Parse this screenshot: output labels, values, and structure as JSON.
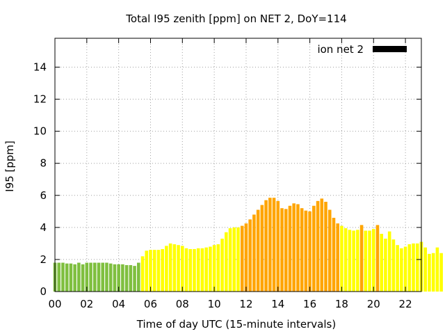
{
  "chart_data": {
    "type": "bar",
    "title": "Total I95 zenith [ppm] on NET 2, DoY=114",
    "xlabel": "Time of day UTC (15-minute intervals)",
    "ylabel": "I95 [ppm]",
    "xlim": [
      0,
      23
    ],
    "ylim": [
      0,
      15.8
    ],
    "xticks": [
      0,
      2,
      4,
      6,
      8,
      10,
      12,
      14,
      16,
      18,
      20,
      22
    ],
    "xtick_labels": [
      "00",
      "02",
      "04",
      "06",
      "08",
      "10",
      "12",
      "14",
      "16",
      "18",
      "20",
      "22"
    ],
    "yticks": [
      0,
      2,
      4,
      6,
      8,
      10,
      12,
      14
    ],
    "ytick_labels": [
      "0",
      "2",
      "4",
      "6",
      "8",
      "10",
      "12",
      "14"
    ],
    "grid": true,
    "legend": {
      "label": "ion net 2",
      "color": "#000000",
      "placement": "top-right"
    },
    "bar_interval_hours": 0.25,
    "colors": {
      "green": "#7fbf3f",
      "yellow": "#ffff00",
      "orange": "#ffa500"
    },
    "values": [
      1.8,
      1.8,
      1.8,
      1.75,
      1.75,
      1.7,
      1.8,
      1.7,
      1.8,
      1.8,
      1.8,
      1.8,
      1.8,
      1.8,
      1.75,
      1.7,
      1.7,
      1.7,
      1.65,
      1.65,
      1.6,
      1.8,
      2.2,
      2.55,
      2.6,
      2.6,
      2.6,
      2.65,
      2.85,
      3.0,
      2.95,
      2.9,
      2.85,
      2.7,
      2.65,
      2.65,
      2.7,
      2.7,
      2.75,
      2.8,
      2.9,
      2.95,
      3.3,
      3.7,
      3.95,
      4.0,
      4.0,
      4.1,
      4.25,
      4.5,
      4.8,
      5.1,
      5.4,
      5.7,
      5.85,
      5.85,
      5.65,
      5.2,
      5.15,
      5.35,
      5.5,
      5.45,
      5.2,
      5.05,
      5.0,
      5.35,
      5.65,
      5.8,
      5.6,
      5.1,
      4.6,
      4.25,
      4.1,
      3.95,
      3.85,
      3.8,
      3.85,
      4.15,
      3.8,
      3.8,
      3.9,
      4.15,
      3.6,
      3.3,
      3.75,
      3.25,
      2.9,
      2.7,
      2.8,
      2.95,
      3.0,
      3.0,
      3.1,
      2.75,
      2.35,
      2.4,
      2.75,
      2.4
    ],
    "bar_colors": [
      "green",
      "green",
      "green",
      "green",
      "green",
      "green",
      "green",
      "green",
      "green",
      "green",
      "green",
      "green",
      "green",
      "green",
      "green",
      "green",
      "green",
      "green",
      "green",
      "green",
      "green",
      "green",
      "yellow",
      "yellow",
      "yellow",
      "yellow",
      "yellow",
      "yellow",
      "yellow",
      "yellow",
      "yellow",
      "yellow",
      "yellow",
      "yellow",
      "yellow",
      "yellow",
      "yellow",
      "yellow",
      "yellow",
      "yellow",
      "yellow",
      "yellow",
      "yellow",
      "yellow",
      "yellow",
      "yellow",
      "yellow",
      "orange",
      "orange",
      "orange",
      "orange",
      "orange",
      "orange",
      "orange",
      "orange",
      "orange",
      "orange",
      "orange",
      "orange",
      "orange",
      "orange",
      "orange",
      "orange",
      "orange",
      "orange",
      "orange",
      "orange",
      "orange",
      "orange",
      "orange",
      "orange",
      "orange",
      "yellow",
      "yellow",
      "yellow",
      "yellow",
      "yellow",
      "orange",
      "yellow",
      "yellow",
      "yellow",
      "orange",
      "yellow",
      "yellow",
      "yellow",
      "yellow",
      "yellow",
      "yellow",
      "yellow",
      "yellow",
      "yellow",
      "yellow",
      "yellow",
      "yellow",
      "yellow",
      "yellow",
      "yellow",
      "yellow"
    ]
  }
}
